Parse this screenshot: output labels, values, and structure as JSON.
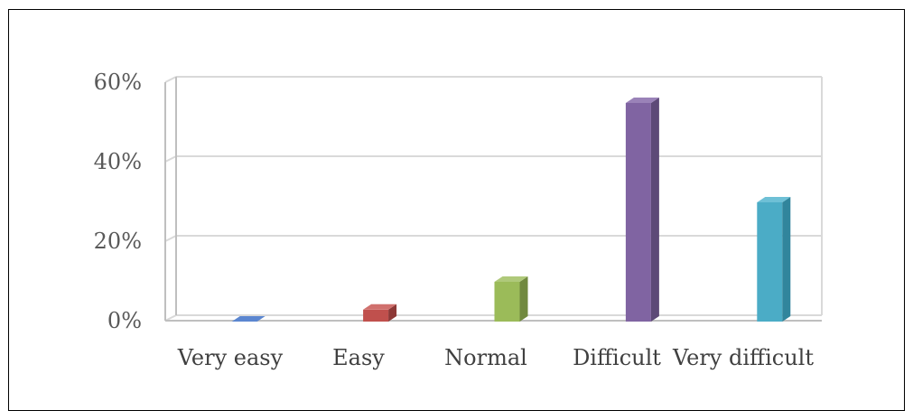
{
  "chart_data": {
    "type": "bar",
    "categories": [
      "Very easy",
      "Easy",
      "Normal",
      "Difficult",
      "Very difficult"
    ],
    "values": [
      0,
      3,
      10,
      55,
      30
    ],
    "unit": "%",
    "ylim": [
      0,
      60
    ],
    "y_ticks": [
      "0%",
      "20%",
      "40%",
      "60%"
    ],
    "y_tick_values": [
      0,
      20,
      40,
      60
    ],
    "colors": [
      "#4472C4",
      "#C0504D",
      "#9BBB59",
      "#8064A2",
      "#4BACC6"
    ],
    "dark_colors": [
      "#2F528F",
      "#8C3836",
      "#71893F",
      "#5D4977",
      "#31859C"
    ],
    "top_colors": [
      "#5B86D0",
      "#D0706D",
      "#AFC97A",
      "#9A82B8",
      "#6EC0D6"
    ],
    "grid": true,
    "legend": "none",
    "style": "3d-column"
  }
}
